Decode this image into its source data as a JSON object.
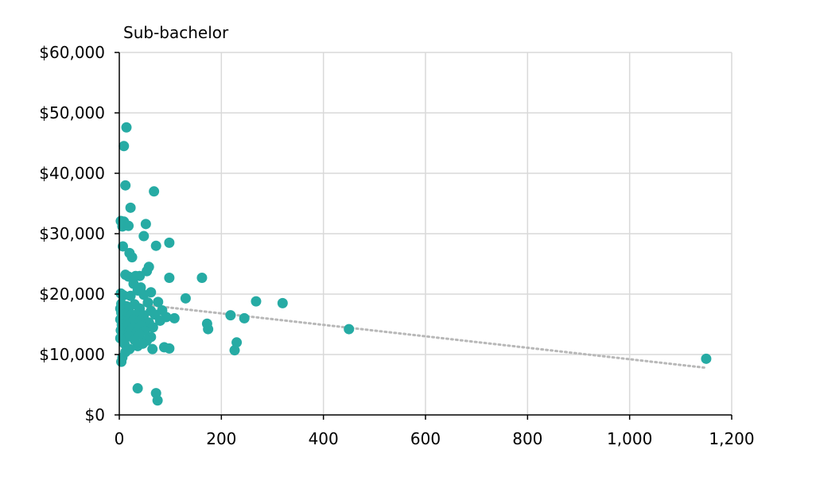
{
  "chart_data": {
    "type": "scatter",
    "title": "Sub-bachelor",
    "xlabel": "",
    "ylabel": "",
    "xlim": [
      0,
      1200
    ],
    "ylim": [
      0,
      60000
    ],
    "x_ticks": [
      0,
      200,
      400,
      600,
      800,
      1000,
      1200
    ],
    "x_tick_labels": [
      "0",
      "200",
      "400",
      "600",
      "800",
      "1,000",
      "1,200"
    ],
    "y_ticks": [
      0,
      10000,
      20000,
      30000,
      40000,
      50000,
      60000
    ],
    "y_tick_labels": [
      "$0",
      "$10,000",
      "$20,000",
      "$30,000",
      "$40,000",
      "$50,000",
      "$60,000"
    ],
    "grid": true,
    "legend": "none",
    "point_color": "#26aba4",
    "trendline_color": "#b8b8b8",
    "trendline": {
      "x": [
        0,
        1150
      ],
      "y": [
        18700,
        7800
      ]
    },
    "series": [
      {
        "points": [
          [
            14,
            47600
          ],
          [
            9,
            44500
          ],
          [
            12,
            38000
          ],
          [
            68,
            37000
          ],
          [
            22,
            34300
          ],
          [
            3,
            32100
          ],
          [
            9,
            32000
          ],
          [
            6,
            31200
          ],
          [
            18,
            31300
          ],
          [
            52,
            31600
          ],
          [
            48,
            29600
          ],
          [
            98,
            28500
          ],
          [
            72,
            28000
          ],
          [
            7,
            27900
          ],
          [
            20,
            26800
          ],
          [
            25,
            26100
          ],
          [
            58,
            24500
          ],
          [
            54,
            23800
          ],
          [
            12,
            23200
          ],
          [
            18,
            22900
          ],
          [
            32,
            23000
          ],
          [
            40,
            23000
          ],
          [
            98,
            22700
          ],
          [
            162,
            22700
          ],
          [
            28,
            21700
          ],
          [
            42,
            21100
          ],
          [
            36,
            20600
          ],
          [
            62,
            20300
          ],
          [
            3,
            20100
          ],
          [
            8,
            19800
          ],
          [
            22,
            19700
          ],
          [
            48,
            19900
          ],
          [
            130,
            19300
          ],
          [
            268,
            18800
          ],
          [
            320,
            18500
          ],
          [
            4,
            18400
          ],
          [
            14,
            18000
          ],
          [
            30,
            18300
          ],
          [
            56,
            18600
          ],
          [
            76,
            18700
          ],
          [
            2,
            17600
          ],
          [
            10,
            17400
          ],
          [
            18,
            17500
          ],
          [
            40,
            17600
          ],
          [
            62,
            17200
          ],
          [
            84,
            17300
          ],
          [
            4,
            16900
          ],
          [
            12,
            16700
          ],
          [
            24,
            16600
          ],
          [
            36,
            16800
          ],
          [
            48,
            16500
          ],
          [
            70,
            16600
          ],
          [
            92,
            16200
          ],
          [
            108,
            16000
          ],
          [
            218,
            16500
          ],
          [
            245,
            16000
          ],
          [
            2,
            15800
          ],
          [
            6,
            15500
          ],
          [
            16,
            15400
          ],
          [
            28,
            15700
          ],
          [
            40,
            15500
          ],
          [
            58,
            15300
          ],
          [
            80,
            15600
          ],
          [
            172,
            15100
          ],
          [
            5,
            14900
          ],
          [
            14,
            14600
          ],
          [
            26,
            14500
          ],
          [
            44,
            14700
          ],
          [
            66,
            14500
          ],
          [
            174,
            14200
          ],
          [
            450,
            14200
          ],
          [
            3,
            14000
          ],
          [
            20,
            13800
          ],
          [
            34,
            13600
          ],
          [
            50,
            13900
          ],
          [
            6,
            13200
          ],
          [
            18,
            13000
          ],
          [
            40,
            13300
          ],
          [
            62,
            12900
          ],
          [
            2,
            12700
          ],
          [
            30,
            12400
          ],
          [
            54,
            12300
          ],
          [
            230,
            12000
          ],
          [
            10,
            11800
          ],
          [
            36,
            11400
          ],
          [
            46,
            11800
          ],
          [
            88,
            11200
          ],
          [
            98,
            11000
          ],
          [
            20,
            10900
          ],
          [
            65,
            10900
          ],
          [
            226,
            10700
          ],
          [
            12,
            10400
          ],
          [
            6,
            9500
          ],
          [
            4,
            8800
          ],
          [
            1150,
            9300
          ],
          [
            36,
            4400
          ],
          [
            72,
            3600
          ],
          [
            75,
            2400
          ]
        ]
      }
    ]
  }
}
